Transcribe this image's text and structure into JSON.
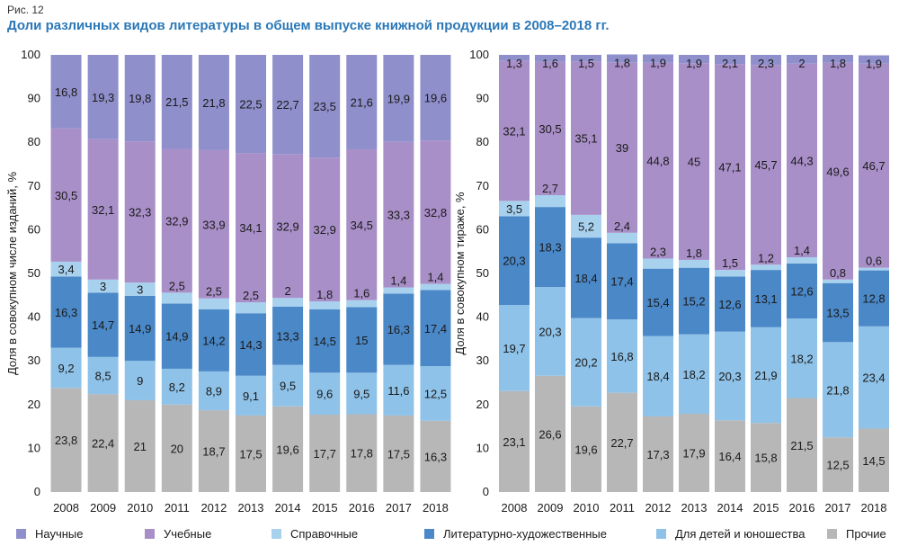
{
  "figure_label": "Рис. 12",
  "title": "Доли различных видов литературы в общем выпуске книжной продукции в 2008–2018 гг.",
  "legend": [
    {
      "name": "Научные",
      "color": "#8f8fcc"
    },
    {
      "name": "Учебные",
      "color": "#a98fc8"
    },
    {
      "name": "Справочные",
      "color": "#a8d1ee"
    },
    {
      "name": "Литературно-художественные",
      "color": "#4a88c8"
    },
    {
      "name": "Для детей и юношества",
      "color": "#8ec2e8"
    },
    {
      "name": "Прочие",
      "color": "#b7b7b7"
    }
  ],
  "chart_data": [
    {
      "type": "bar",
      "stacked": true,
      "ylabel": "Доля в совокупном числе изданий, %",
      "ylim": [
        0,
        100
      ],
      "yticks": [
        0,
        10,
        20,
        30,
        40,
        50,
        60,
        70,
        80,
        90,
        100
      ],
      "grid": false,
      "categories": [
        "2008",
        "2009",
        "2010",
        "2011",
        "2012",
        "2013",
        "2014",
        "2015",
        "2016",
        "2017",
        "2018"
      ],
      "series": [
        {
          "name": "Прочие",
          "values": [
            23.8,
            22.4,
            21,
            20,
            18.7,
            17.5,
            19.6,
            17.7,
            17.8,
            17.5,
            16.3
          ],
          "labels": [
            "23,8",
            "22,4",
            "21",
            "20",
            "18,7",
            "17,5",
            "19,6",
            "17,7",
            "17,8",
            "17,5",
            "16,3"
          ]
        },
        {
          "name": "Для детей и юношества",
          "values": [
            9.2,
            8.5,
            9,
            8.2,
            8.9,
            9.1,
            9.5,
            9.6,
            9.5,
            11.6,
            12.5
          ],
          "labels": [
            "9,2",
            "8,5",
            "9",
            "8,2",
            "8,9",
            "9,1",
            "9,5",
            "9,6",
            "9,5",
            "11,6",
            "12,5"
          ]
        },
        {
          "name": "Литературно-художественные",
          "values": [
            16.3,
            14.7,
            14.9,
            14.9,
            14.2,
            14.3,
            13.3,
            14.5,
            15,
            16.3,
            17.4
          ],
          "labels": [
            "16,3",
            "14,7",
            "14,9",
            "14,9",
            "14,2",
            "14,3",
            "13,3",
            "14,5",
            "15",
            "16,3",
            "17,4"
          ]
        },
        {
          "name": "Справочные",
          "values": [
            3.4,
            3,
            3,
            2.5,
            2.5,
            2.5,
            2,
            1.8,
            1.6,
            1.4,
            1.4
          ],
          "labels": [
            "3,4",
            "3",
            "3",
            "2,5",
            "2,5",
            "2,5",
            "2",
            "1,8",
            "1,6",
            "1,4",
            "1,4"
          ]
        },
        {
          "name": "Учебные",
          "values": [
            30.5,
            32.1,
            32.3,
            32.9,
            33.9,
            34.1,
            32.9,
            32.9,
            34.5,
            33.3,
            32.8
          ],
          "labels": [
            "30,5",
            "32,1",
            "32,3",
            "32,9",
            "33,9",
            "34,1",
            "32,9",
            "32,9",
            "34,5",
            "33,3",
            "32,8"
          ]
        },
        {
          "name": "Научные",
          "values": [
            16.8,
            19.3,
            19.8,
            21.5,
            21.8,
            22.5,
            22.7,
            23.5,
            21.6,
            19.9,
            19.6
          ],
          "labels": [
            "16,8",
            "19,3",
            "19,8",
            "21,5",
            "21,8",
            "22,5",
            "22,7",
            "23,5",
            "21,6",
            "19,9",
            "19,6"
          ]
        }
      ]
    },
    {
      "type": "bar",
      "stacked": true,
      "ylabel": "Доля в совокупном тираже, %",
      "ylim": [
        0,
        100
      ],
      "yticks": [
        0,
        10,
        20,
        30,
        40,
        50,
        60,
        70,
        80,
        90,
        100
      ],
      "grid": false,
      "categories": [
        "2008",
        "2009",
        "2010",
        "2011",
        "2012",
        "2013",
        "2014",
        "2015",
        "2016",
        "2017",
        "2018"
      ],
      "series": [
        {
          "name": "Прочие",
          "values": [
            23.1,
            26.6,
            19.6,
            22.7,
            17.3,
            17.9,
            16.4,
            15.8,
            21.5,
            12.5,
            14.5
          ],
          "labels": [
            "23,1",
            "26,6",
            "19,6",
            "22,7",
            "17,3",
            "17,9",
            "16,4",
            "15,8",
            "21,5",
            "12,5",
            "14,5"
          ]
        },
        {
          "name": "Для детей и юношества",
          "values": [
            19.7,
            20.3,
            20.2,
            16.8,
            18.4,
            18.2,
            20.3,
            21.9,
            18.2,
            21.8,
            23.4
          ],
          "labels": [
            "19,7",
            "20,3",
            "20,2",
            "16,8",
            "18,4",
            "18,2",
            "20,3",
            "21,9",
            "18,2",
            "21,8",
            "23,4"
          ]
        },
        {
          "name": "Литературно-художественные",
          "values": [
            20.3,
            18.3,
            18.4,
            17.4,
            15.4,
            15.2,
            12.6,
            13.1,
            12.6,
            13.5,
            12.8
          ],
          "labels": [
            "20,3",
            "18,3",
            "18,4",
            "17,4",
            "15,4",
            "15,2",
            "12,6",
            "13,1",
            "12,6",
            "13,5",
            "12,8"
          ]
        },
        {
          "name": "Справочные",
          "values": [
            3.5,
            2.7,
            5.2,
            2.4,
            2.3,
            1.8,
            1.5,
            1.2,
            1.4,
            0.8,
            0.6
          ],
          "labels": [
            "3,5",
            "2,7",
            "5,2",
            "2,4",
            "2,3",
            "1,8",
            "1,5",
            "1,2",
            "1,4",
            "0,8",
            "0,6"
          ]
        },
        {
          "name": "Учебные",
          "values": [
            32.1,
            30.5,
            35.1,
            39,
            44.8,
            45,
            47.1,
            45.7,
            44.3,
            49.6,
            46.7
          ],
          "labels": [
            "32,1",
            "30,5",
            "35,1",
            "39",
            "44,8",
            "45",
            "47,1",
            "45,7",
            "44,3",
            "49,6",
            "46,7"
          ]
        },
        {
          "name": "Научные",
          "values": [
            1.3,
            1.6,
            1.5,
            1.8,
            1.9,
            1.9,
            2.1,
            2.3,
            2,
            1.8,
            1.9
          ],
          "labels": [
            "1,3",
            "1,6",
            "1,5",
            "1,8",
            "1,9",
            "1,9",
            "2,1",
            "2,3",
            "2",
            "1,8",
            "1,9"
          ]
        }
      ]
    }
  ]
}
